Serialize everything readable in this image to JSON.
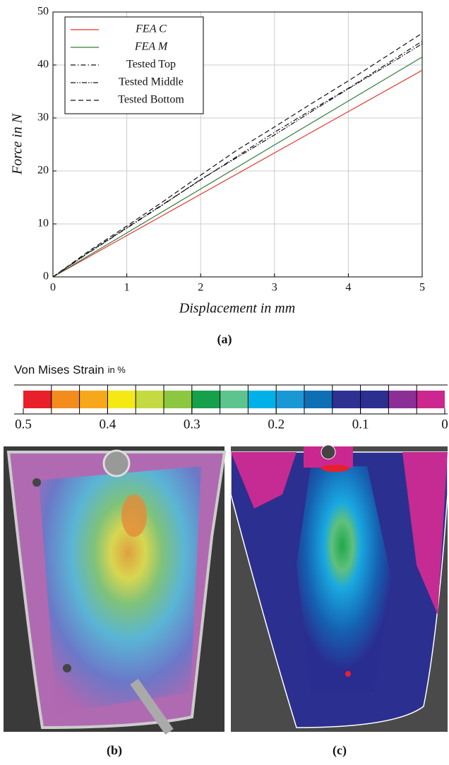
{
  "chart_data": {
    "type": "line",
    "x_label": "Displacement in mm",
    "y_label": "Force in N",
    "x": [
      0,
      0.5,
      1,
      1.5,
      2,
      2.5,
      3,
      3.5,
      4,
      4.5,
      5
    ],
    "series": [
      {
        "name": "FEA C",
        "color": "#e8312a",
        "dash": "solid",
        "values": [
          0,
          3.9,
          7.8,
          11.7,
          15.6,
          19.5,
          23.4,
          27.3,
          31.2,
          35.1,
          39
        ]
      },
      {
        "name": "FEA M",
        "color": "#2e7d3a",
        "dash": "solid",
        "values": [
          0,
          4.15,
          8.3,
          12.45,
          16.6,
          20.75,
          24.9,
          29.05,
          33.2,
          37.35,
          41.5
        ]
      },
      {
        "name": "Tested Top",
        "color": "#111111",
        "dash": "dashdot",
        "values": [
          0,
          4.8,
          9.3,
          13.8,
          18.3,
          22.8,
          27.3,
          31.5,
          35.6,
          40,
          44.5
        ]
      },
      {
        "name": "Tested Middle",
        "color": "#111111",
        "dash": "dashdotdot",
        "values": [
          0,
          4.7,
          9.2,
          13.7,
          18.4,
          22.6,
          26.8,
          31.2,
          35.5,
          39.7,
          44
        ]
      },
      {
        "name": "Tested Bottom",
        "color": "#111111",
        "dash": "dashed",
        "values": [
          0,
          5,
          9.6,
          14.3,
          19.2,
          24,
          28.3,
          32.7,
          37,
          41.5,
          46
        ]
      }
    ],
    "xlim": [
      0,
      5
    ],
    "xticks": [
      0,
      1,
      2,
      3,
      4,
      5
    ],
    "ylim": [
      0,
      50
    ],
    "yticks": [
      0,
      10,
      20,
      30,
      40,
      50
    ],
    "grid": true,
    "legend": "top-left"
  },
  "colorbar": {
    "title": "Von Mises Strain",
    "title_unit": "in %",
    "lim": [
      0.5,
      0
    ],
    "ticks": [
      0.5,
      0.4,
      0.3,
      0.2,
      0.1,
      0
    ],
    "colors": [
      "#e8202a",
      "#f28c1d",
      "#f6a81a",
      "#f5e915",
      "#c5d941",
      "#8dc63f",
      "#15a04b",
      "#5dc48e",
      "#00b1e8",
      "#1a98d5",
      "#0f6fb5",
      "#2e3192",
      "#2b2f8f",
      "#8b2f97",
      "#cc2790"
    ]
  },
  "captions": [
    "(a)",
    "(b)",
    "(c)"
  ]
}
